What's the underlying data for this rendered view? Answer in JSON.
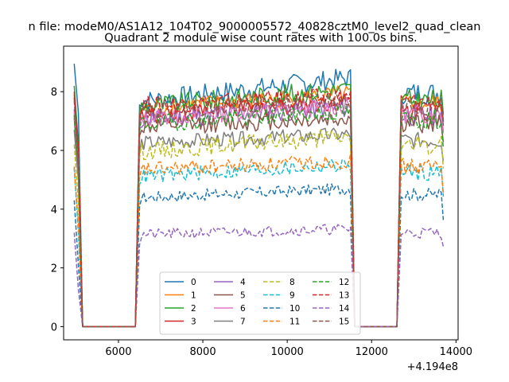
{
  "suptitle": "n file: modeM0/AS1A12_104T02_9000005572_40828cztM0_level2_quad_clean",
  "chart_data": {
    "type": "line",
    "title": "Quadrant 2 module wise count rates with 100.0s bins.",
    "xlabel": "",
    "ylabel": "",
    "x_offset_label": "+4.194e8",
    "xlim": [
      4700,
      14050
    ],
    "ylim": [
      -0.45,
      9.55
    ],
    "xticks": [
      6000,
      8000,
      10000,
      12000,
      14000
    ],
    "yticks": [
      0,
      2,
      4,
      6,
      8
    ],
    "xtick_labels": [
      "6000",
      "8000",
      "10000",
      "12000",
      "14000"
    ],
    "ytick_labels": [
      "0",
      "2",
      "4",
      "6",
      "8"
    ],
    "grid": false,
    "legend_placement": "lower-center",
    "segments": [
      {
        "x_start": 4950,
        "x_end": 5050,
        "step": 100
      },
      {
        "x_start": 6500,
        "x_end": 11500,
        "step": 50
      },
      {
        "x_start": 12700,
        "x_end": 13700,
        "step": 50
      }
    ],
    "zero_gaps": [
      [
        5150,
        6400
      ],
      [
        11600,
        12600
      ]
    ],
    "series": [
      {
        "name": "0",
        "color": "#1f77b4",
        "dash": "solid",
        "level": 7.95,
        "spread": 0.35,
        "trend": 0.8,
        "first": 8.95
      },
      {
        "name": "1",
        "color": "#ff7f0e",
        "dash": "solid",
        "level": 7.6,
        "spread": 0.3,
        "trend": 0.5,
        "first": 7.9
      },
      {
        "name": "2",
        "color": "#2ca02c",
        "dash": "solid",
        "level": 7.7,
        "spread": 0.35,
        "trend": 0.6,
        "first": 8.2
      },
      {
        "name": "3",
        "color": "#d62728",
        "dash": "solid",
        "level": 7.35,
        "spread": 0.3,
        "trend": 0.5,
        "first": 8.0
      },
      {
        "name": "4",
        "color": "#9467bd",
        "dash": "solid",
        "level": 7.2,
        "spread": 0.35,
        "trend": 0.4,
        "first": 7.4
      },
      {
        "name": "5",
        "color": "#8c564b",
        "dash": "solid",
        "level": 6.9,
        "spread": 0.3,
        "trend": 0.3,
        "first": 7.1
      },
      {
        "name": "6",
        "color": "#e377c2",
        "dash": "solid",
        "level": 7.25,
        "spread": 0.3,
        "trend": 0.4,
        "first": 7.3
      },
      {
        "name": "7",
        "color": "#7f7f7f",
        "dash": "solid",
        "level": 6.35,
        "spread": 0.25,
        "trend": 0.3,
        "first": 6.7
      },
      {
        "name": "8",
        "color": "#bcbd22",
        "dash": "dashed",
        "level": 6.15,
        "spread": 0.3,
        "trend": 0.5,
        "first": 6.2
      },
      {
        "name": "9",
        "color": "#17becf",
        "dash": "dashed",
        "level": 5.25,
        "spread": 0.25,
        "trend": 0.4,
        "first": 5.4
      },
      {
        "name": "10",
        "color": "#1f77b4",
        "dash": "dashed",
        "level": 4.5,
        "spread": 0.2,
        "trend": 0.3,
        "first": 4.3
      },
      {
        "name": "11",
        "color": "#ff7f0e",
        "dash": "dashed",
        "level": 5.45,
        "spread": 0.25,
        "trend": 0.3,
        "first": 5.45
      },
      {
        "name": "12",
        "color": "#2ca02c",
        "dash": "dashed",
        "level": 7.05,
        "spread": 0.3,
        "trend": 0.4,
        "first": 7.2
      },
      {
        "name": "13",
        "color": "#d62728",
        "dash": "dashed",
        "level": 7.65,
        "spread": 0.3,
        "trend": 0.3,
        "first": 7.8
      },
      {
        "name": "14",
        "color": "#9467bd",
        "dash": "dashed",
        "level": 3.2,
        "spread": 0.18,
        "trend": 0.2,
        "first": 3.2
      },
      {
        "name": "15",
        "color": "#8c564b",
        "dash": "dashed",
        "level": 7.5,
        "spread": 0.3,
        "trend": 0.3,
        "first": 7.7
      }
    ]
  }
}
